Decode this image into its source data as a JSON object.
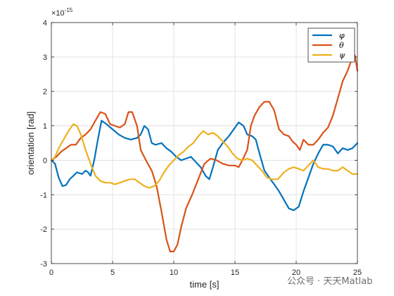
{
  "chart_data": {
    "type": "line",
    "xlabel": "time [s]",
    "ylabel": "orientation [rad]",
    "xlim": [
      0,
      25
    ],
    "ylim": [
      -3,
      4
    ],
    "y_exponent_label": "× 10^-15",
    "x_ticks": [
      "0",
      "5",
      "10",
      "15",
      "20",
      "25"
    ],
    "y_ticks": [
      "-3",
      "-2",
      "-1",
      "0",
      "1",
      "2",
      "3",
      "4"
    ],
    "grid": true,
    "legend_position": "top-right",
    "series": [
      {
        "name": "φ",
        "color": "#0072BD",
        "points": [
          [
            0,
            0
          ],
          [
            0.3,
            -0.1
          ],
          [
            0.6,
            -0.5
          ],
          [
            0.9,
            -0.75
          ],
          [
            1.2,
            -0.72
          ],
          [
            1.5,
            -0.55
          ],
          [
            1.8,
            -0.45
          ],
          [
            2.1,
            -0.35
          ],
          [
            2.5,
            -0.4
          ],
          [
            2.8,
            -0.3
          ],
          [
            3.0,
            -0.35
          ],
          [
            3.2,
            -0.45
          ],
          [
            3.5,
            0.0
          ],
          [
            3.8,
            0.6
          ],
          [
            4.1,
            1.15
          ],
          [
            4.5,
            1.05
          ],
          [
            5.0,
            0.9
          ],
          [
            5.5,
            0.75
          ],
          [
            6.0,
            0.65
          ],
          [
            6.5,
            0.6
          ],
          [
            7.0,
            0.65
          ],
          [
            7.3,
            0.75
          ],
          [
            7.6,
            1.0
          ],
          [
            7.9,
            0.9
          ],
          [
            8.2,
            0.5
          ],
          [
            8.5,
            0.45
          ],
          [
            9.0,
            0.5
          ],
          [
            9.4,
            0.35
          ],
          [
            9.8,
            0.25
          ],
          [
            10.2,
            0.1
          ],
          [
            10.6,
            0.0
          ],
          [
            11.0,
            0.05
          ],
          [
            11.4,
            0.1
          ],
          [
            11.8,
            -0.05
          ],
          [
            12.2,
            -0.2
          ],
          [
            12.6,
            -0.45
          ],
          [
            12.9,
            -0.55
          ],
          [
            13.2,
            -0.2
          ],
          [
            13.6,
            0.3
          ],
          [
            14.0,
            0.5
          ],
          [
            14.5,
            0.7
          ],
          [
            15.0,
            0.95
          ],
          [
            15.3,
            1.1
          ],
          [
            15.7,
            1.0
          ],
          [
            16.0,
            0.75
          ],
          [
            16.4,
            0.7
          ],
          [
            16.7,
            0.6
          ],
          [
            17.0,
            0.2
          ],
          [
            17.4,
            -0.3
          ],
          [
            17.8,
            -0.5
          ],
          [
            18.2,
            -0.7
          ],
          [
            18.6,
            -0.9
          ],
          [
            19.0,
            -1.15
          ],
          [
            19.4,
            -1.4
          ],
          [
            19.8,
            -1.45
          ],
          [
            20.2,
            -1.35
          ],
          [
            20.6,
            -0.9
          ],
          [
            21.0,
            -0.5
          ],
          [
            21.4,
            -0.1
          ],
          [
            21.8,
            0.2
          ],
          [
            22.2,
            0.45
          ],
          [
            22.6,
            0.45
          ],
          [
            23.0,
            0.4
          ],
          [
            23.4,
            0.2
          ],
          [
            23.8,
            0.35
          ],
          [
            24.2,
            0.3
          ],
          [
            24.6,
            0.35
          ],
          [
            25.0,
            0.5
          ]
        ]
      },
      {
        "name": "θ",
        "color": "#D95319",
        "points": [
          [
            0,
            0
          ],
          [
            0.4,
            0.1
          ],
          [
            0.8,
            0.25
          ],
          [
            1.2,
            0.35
          ],
          [
            1.6,
            0.45
          ],
          [
            2.0,
            0.45
          ],
          [
            2.4,
            0.65
          ],
          [
            2.8,
            0.75
          ],
          [
            3.2,
            0.9
          ],
          [
            3.6,
            1.15
          ],
          [
            4.0,
            1.4
          ],
          [
            4.4,
            1.35
          ],
          [
            4.8,
            1.05
          ],
          [
            5.2,
            1.0
          ],
          [
            5.6,
            0.95
          ],
          [
            6.0,
            1.05
          ],
          [
            6.3,
            1.4
          ],
          [
            6.6,
            1.4
          ],
          [
            7.0,
            1.0
          ],
          [
            7.3,
            0.3
          ],
          [
            7.8,
            -0.05
          ],
          [
            8.2,
            -0.3
          ],
          [
            8.6,
            -0.75
          ],
          [
            9.0,
            -1.5
          ],
          [
            9.4,
            -2.3
          ],
          [
            9.7,
            -2.65
          ],
          [
            10.0,
            -2.65
          ],
          [
            10.3,
            -2.45
          ],
          [
            10.6,
            -1.95
          ],
          [
            11.0,
            -1.4
          ],
          [
            11.5,
            -1.0
          ],
          [
            12.0,
            -0.55
          ],
          [
            12.5,
            -0.1
          ],
          [
            13.0,
            0.05
          ],
          [
            13.5,
            0.0
          ],
          [
            14.0,
            -0.1
          ],
          [
            14.5,
            -0.15
          ],
          [
            15.0,
            -0.15
          ],
          [
            15.3,
            -0.2
          ],
          [
            15.6,
            0.0
          ],
          [
            16.0,
            0.3
          ],
          [
            16.3,
            1.0
          ],
          [
            16.6,
            1.3
          ],
          [
            17.0,
            1.55
          ],
          [
            17.4,
            1.7
          ],
          [
            17.8,
            1.7
          ],
          [
            18.2,
            1.45
          ],
          [
            18.6,
            0.9
          ],
          [
            19.0,
            0.75
          ],
          [
            19.4,
            0.7
          ],
          [
            19.7,
            0.55
          ],
          [
            20.0,
            0.45
          ],
          [
            20.3,
            0.3
          ],
          [
            20.6,
            0.6
          ],
          [
            21.0,
            0.45
          ],
          [
            21.4,
            0.45
          ],
          [
            21.8,
            0.6
          ],
          [
            22.2,
            0.8
          ],
          [
            22.6,
            0.95
          ],
          [
            23.0,
            1.3
          ],
          [
            23.4,
            1.8
          ],
          [
            23.8,
            2.3
          ],
          [
            24.2,
            2.6
          ],
          [
            24.5,
            2.9
          ],
          [
            24.8,
            3.05
          ],
          [
            25.0,
            2.6
          ]
        ]
      },
      {
        "name": "ψ",
        "color": "#EDB120",
        "points": [
          [
            0,
            0
          ],
          [
            0.3,
            0.1
          ],
          [
            0.6,
            0.35
          ],
          [
            1.0,
            0.6
          ],
          [
            1.4,
            0.85
          ],
          [
            1.8,
            1.05
          ],
          [
            2.1,
            1.0
          ],
          [
            2.4,
            0.75
          ],
          [
            2.8,
            0.3
          ],
          [
            3.2,
            -0.1
          ],
          [
            3.6,
            -0.45
          ],
          [
            4.0,
            -0.6
          ],
          [
            4.4,
            -0.65
          ],
          [
            4.8,
            -0.65
          ],
          [
            5.2,
            -0.7
          ],
          [
            5.6,
            -0.65
          ],
          [
            6.0,
            -0.6
          ],
          [
            6.4,
            -0.55
          ],
          [
            6.8,
            -0.55
          ],
          [
            7.2,
            -0.65
          ],
          [
            7.6,
            -0.75
          ],
          [
            8.0,
            -0.8
          ],
          [
            8.4,
            -0.75
          ],
          [
            8.8,
            -0.6
          ],
          [
            9.2,
            -0.35
          ],
          [
            9.6,
            -0.15
          ],
          [
            10.0,
            0.0
          ],
          [
            10.4,
            0.15
          ],
          [
            10.8,
            0.25
          ],
          [
            11.2,
            0.4
          ],
          [
            11.6,
            0.5
          ],
          [
            12.0,
            0.7
          ],
          [
            12.4,
            0.85
          ],
          [
            12.8,
            0.75
          ],
          [
            13.2,
            0.8
          ],
          [
            13.6,
            0.7
          ],
          [
            14.0,
            0.55
          ],
          [
            14.4,
            0.4
          ],
          [
            14.8,
            0.2
          ],
          [
            15.2,
            0.05
          ],
          [
            15.6,
            0.0
          ],
          [
            16.0,
            0.05
          ],
          [
            16.4,
            0.0
          ],
          [
            16.8,
            -0.15
          ],
          [
            17.2,
            -0.3
          ],
          [
            17.6,
            -0.5
          ],
          [
            18.0,
            -0.55
          ],
          [
            18.5,
            -0.55
          ],
          [
            19.0,
            -0.35
          ],
          [
            19.4,
            -0.25
          ],
          [
            19.8,
            -0.2
          ],
          [
            20.2,
            -0.25
          ],
          [
            20.6,
            -0.3
          ],
          [
            21.0,
            -0.15
          ],
          [
            21.4,
            0.0
          ],
          [
            21.8,
            -0.2
          ],
          [
            22.2,
            -0.25
          ],
          [
            22.6,
            -0.25
          ],
          [
            23.0,
            -0.3
          ],
          [
            23.4,
            -0.3
          ],
          [
            23.8,
            -0.2
          ],
          [
            24.2,
            -0.3
          ],
          [
            24.6,
            -0.4
          ],
          [
            25.0,
            -0.4
          ]
        ]
      }
    ]
  },
  "watermark": "公众号 · 天天Matlab"
}
